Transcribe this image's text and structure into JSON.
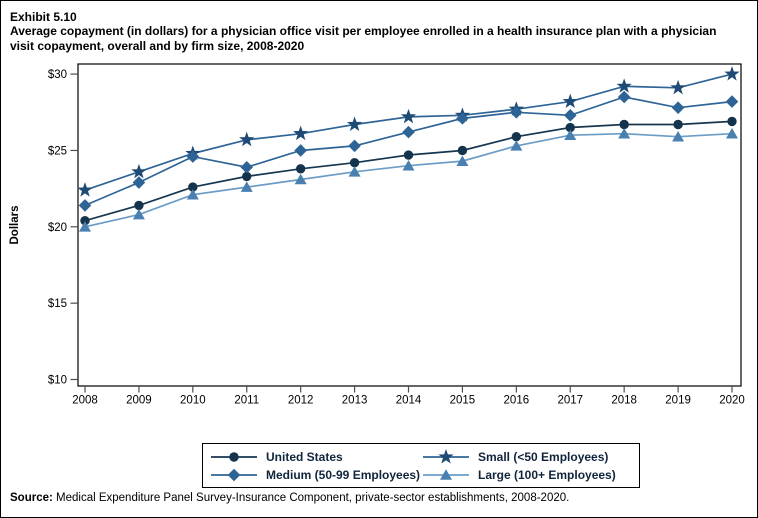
{
  "page": {
    "exhibit_label": "Exhibit 5.10",
    "source_label": "Source:",
    "source_text": " Medical Expenditure Panel Survey-Insurance Component, private-sector establishments, 2008-2020."
  },
  "chart_data": {
    "type": "line",
    "title": "Average copayment (in dollars) for a physician office visit per employee enrolled in a health insurance plan with a physician visit copayment, overall and by firm size, 2008-2020",
    "ylabel": "Dollars",
    "ylim": [
      10,
      30
    ],
    "ytick_step": 5,
    "yticks": [
      "$10",
      "$15",
      "$20",
      "$25",
      "$30"
    ],
    "x": [
      2008,
      2009,
      2010,
      2011,
      2012,
      2013,
      2014,
      2015,
      2016,
      2017,
      2018,
      2019,
      2020
    ],
    "grid": false,
    "legend_position": "bottom",
    "axis_color": "#000000",
    "series": [
      {
        "name": "United States",
        "marker": "circle",
        "marker_icon": "circle-marker-icon",
        "color": "#14334d",
        "line_color": "#17364f",
        "values": [
          20.4,
          21.4,
          22.6,
          23.3,
          23.8,
          24.2,
          24.7,
          25.0,
          25.9,
          26.5,
          26.7,
          26.7,
          26.9
        ]
      },
      {
        "name": "Small (<50 Employees)",
        "marker": "star",
        "marker_icon": "star-marker-icon",
        "color": "#1e4a74",
        "line_color": "#2f6496",
        "values": [
          22.4,
          23.6,
          24.8,
          25.7,
          26.1,
          26.7,
          27.2,
          27.3,
          27.7,
          28.2,
          29.2,
          29.1,
          30.0
        ]
      },
      {
        "name": "Medium (50-99 Employees)",
        "marker": "diamond",
        "marker_icon": "diamond-marker-icon",
        "color": "#2d6395",
        "line_color": "#2f6496",
        "values": [
          21.4,
          22.9,
          24.6,
          23.9,
          25.0,
          25.3,
          26.2,
          27.1,
          27.5,
          27.3,
          28.5,
          27.8,
          28.2
        ]
      },
      {
        "name": "Large (100+ Employees)",
        "marker": "triangle",
        "marker_icon": "triangle-marker-icon",
        "color": "#4a80b0",
        "line_color": "#6b9cc6",
        "values": [
          20.0,
          20.8,
          22.1,
          22.6,
          23.1,
          23.6,
          24.0,
          24.3,
          25.3,
          26.0,
          26.1,
          25.9,
          26.1
        ]
      }
    ]
  }
}
